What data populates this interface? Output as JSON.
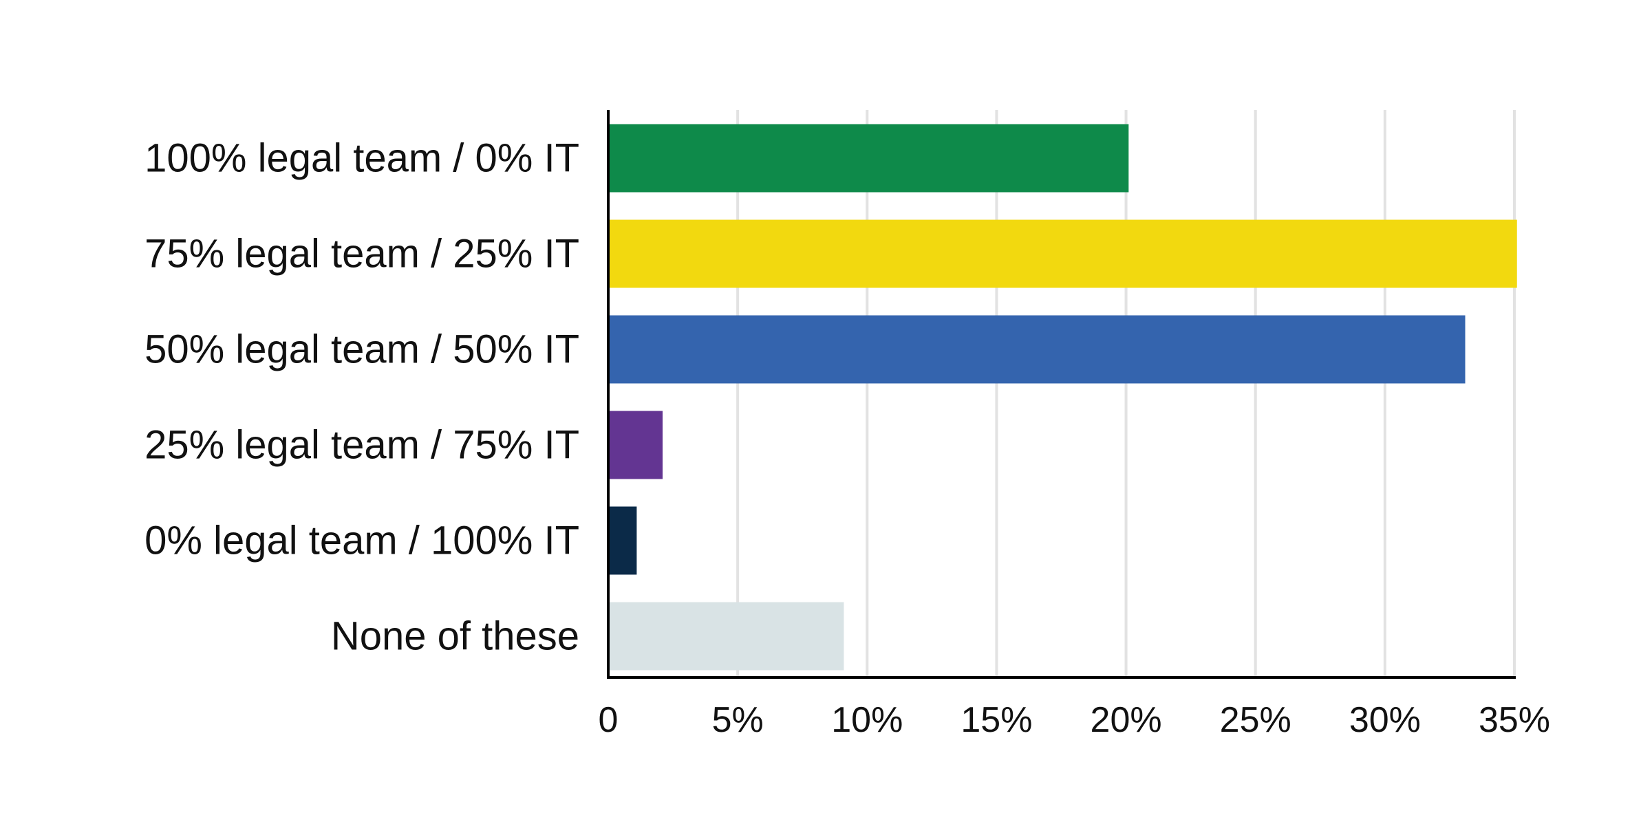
{
  "chart_data": {
    "type": "bar",
    "orientation": "horizontal",
    "categories": [
      "100% legal team / 0% IT",
      "75% legal team / 25% IT",
      "50% legal team / 50% IT",
      "25% legal team / 75% IT",
      "0% legal team / 100% IT",
      "None of these"
    ],
    "values": [
      20.1,
      35.1,
      33.1,
      2.1,
      1.1,
      9.1
    ],
    "colors": [
      "#0e8a4a",
      "#f2d90f",
      "#3464ae",
      "#633592",
      "#0b2a48",
      "#d9e3e5"
    ],
    "xlim": [
      0,
      35
    ],
    "xticks": [
      0,
      5,
      10,
      15,
      20,
      25,
      30,
      35
    ],
    "xtick_labels": [
      "0",
      "5%",
      "10%",
      "15%",
      "20%",
      "25%",
      "30%",
      "35%"
    ],
    "grid": true,
    "title": "",
    "xlabel": "",
    "ylabel": ""
  }
}
